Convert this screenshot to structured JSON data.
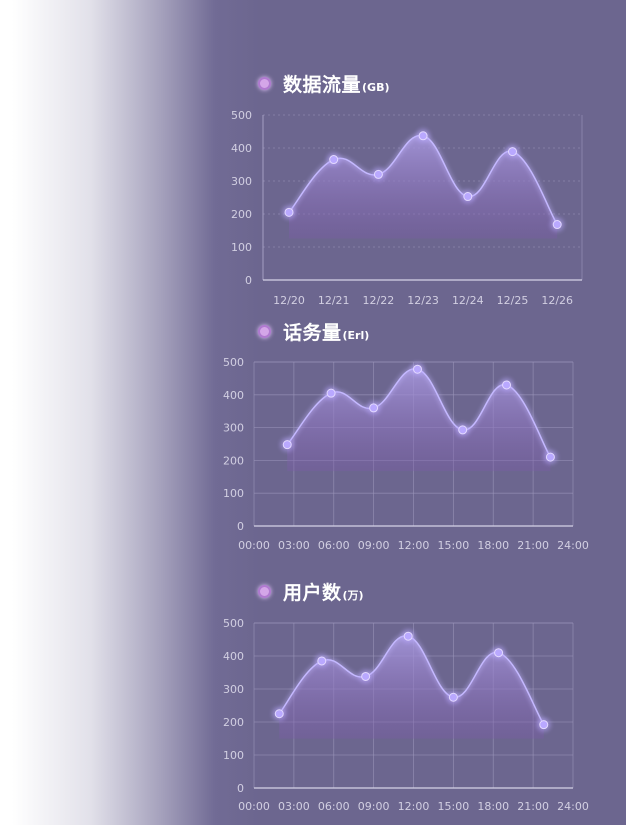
{
  "colors": {
    "background": "#6c668f",
    "line": "#c4b8ff",
    "fill_top": "#a99ae0",
    "fill_bottom": "#7b5aa8",
    "point": "#b9a8ff",
    "title_dot": "#d4a6e8"
  },
  "charts": [
    {
      "id": "traffic",
      "title": "数据流量",
      "unit": "(GB)",
      "icon": "dot-icon",
      "chart_data": {
        "type": "area",
        "smooth": true,
        "grid": "horizontal-dashed",
        "categories": [
          "12/20",
          "12/21",
          "12/22",
          "12/23",
          "12/24",
          "12/25",
          "12/26"
        ],
        "values": [
          205,
          365,
          320,
          437,
          253,
          389,
          168
        ],
        "y_ticks": [
          "0",
          "100",
          "200",
          "300",
          "400",
          "500"
        ],
        "ylim": [
          0,
          500
        ]
      }
    },
    {
      "id": "traffic-volume",
      "title": "话务量",
      "unit": "(Erl)",
      "icon": "dot-icon",
      "chart_data": {
        "type": "area",
        "smooth": true,
        "grid": "full",
        "x_ticks": [
          "00:00",
          "03:00",
          "06:00",
          "09:00",
          "12:00",
          "15:00",
          "18:00",
          "21:00",
          "24:00"
        ],
        "x": [
          2.5,
          5.8,
          9.0,
          12.3,
          15.7,
          19.0,
          22.3
        ],
        "values": [
          248,
          405,
          360,
          478,
          293,
          430,
          210
        ],
        "y_ticks": [
          "0",
          "100",
          "200",
          "300",
          "400",
          "500"
        ],
        "ylim": [
          0,
          500
        ],
        "xlim": [
          0,
          24
        ]
      }
    },
    {
      "id": "users",
      "title": "用户数",
      "unit": "(万)",
      "icon": "dot-icon",
      "chart_data": {
        "type": "area",
        "smooth": true,
        "grid": "full",
        "x_ticks": [
          "00:00",
          "03:00",
          "06:00",
          "09:00",
          "12:00",
          "15:00",
          "18:00",
          "21:00",
          "24:00"
        ],
        "x": [
          1.9,
          5.1,
          8.4,
          11.6,
          15.0,
          18.4,
          21.8
        ],
        "values": [
          225,
          385,
          338,
          460,
          275,
          410,
          192
        ],
        "y_ticks": [
          "0",
          "100",
          "200",
          "300",
          "400",
          "500"
        ],
        "ylim": [
          0,
          500
        ],
        "xlim": [
          0,
          24
        ]
      }
    }
  ]
}
